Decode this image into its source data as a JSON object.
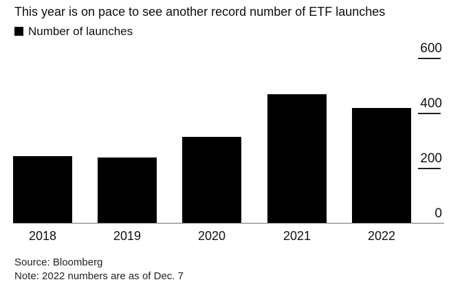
{
  "chart_data": {
    "type": "bar",
    "title": "This year is on pace to see another record number of ETF launches",
    "legend": "Number of launches",
    "categories": [
      "2018",
      "2019",
      "2020",
      "2021",
      "2022"
    ],
    "values": [
      245,
      240,
      315,
      470,
      420
    ],
    "xlabel": "",
    "ylabel": "",
    "yticks": [
      0,
      200,
      400,
      600
    ],
    "ylim": [
      0,
      600
    ],
    "ytick_side": "right",
    "grid": false,
    "legend_position": "top-left",
    "bar_color": "#000000",
    "axis_color": "#6e6e6e",
    "source": "Source: Bloomberg",
    "note": "Note: 2022 numbers are as of Dec. 7"
  }
}
